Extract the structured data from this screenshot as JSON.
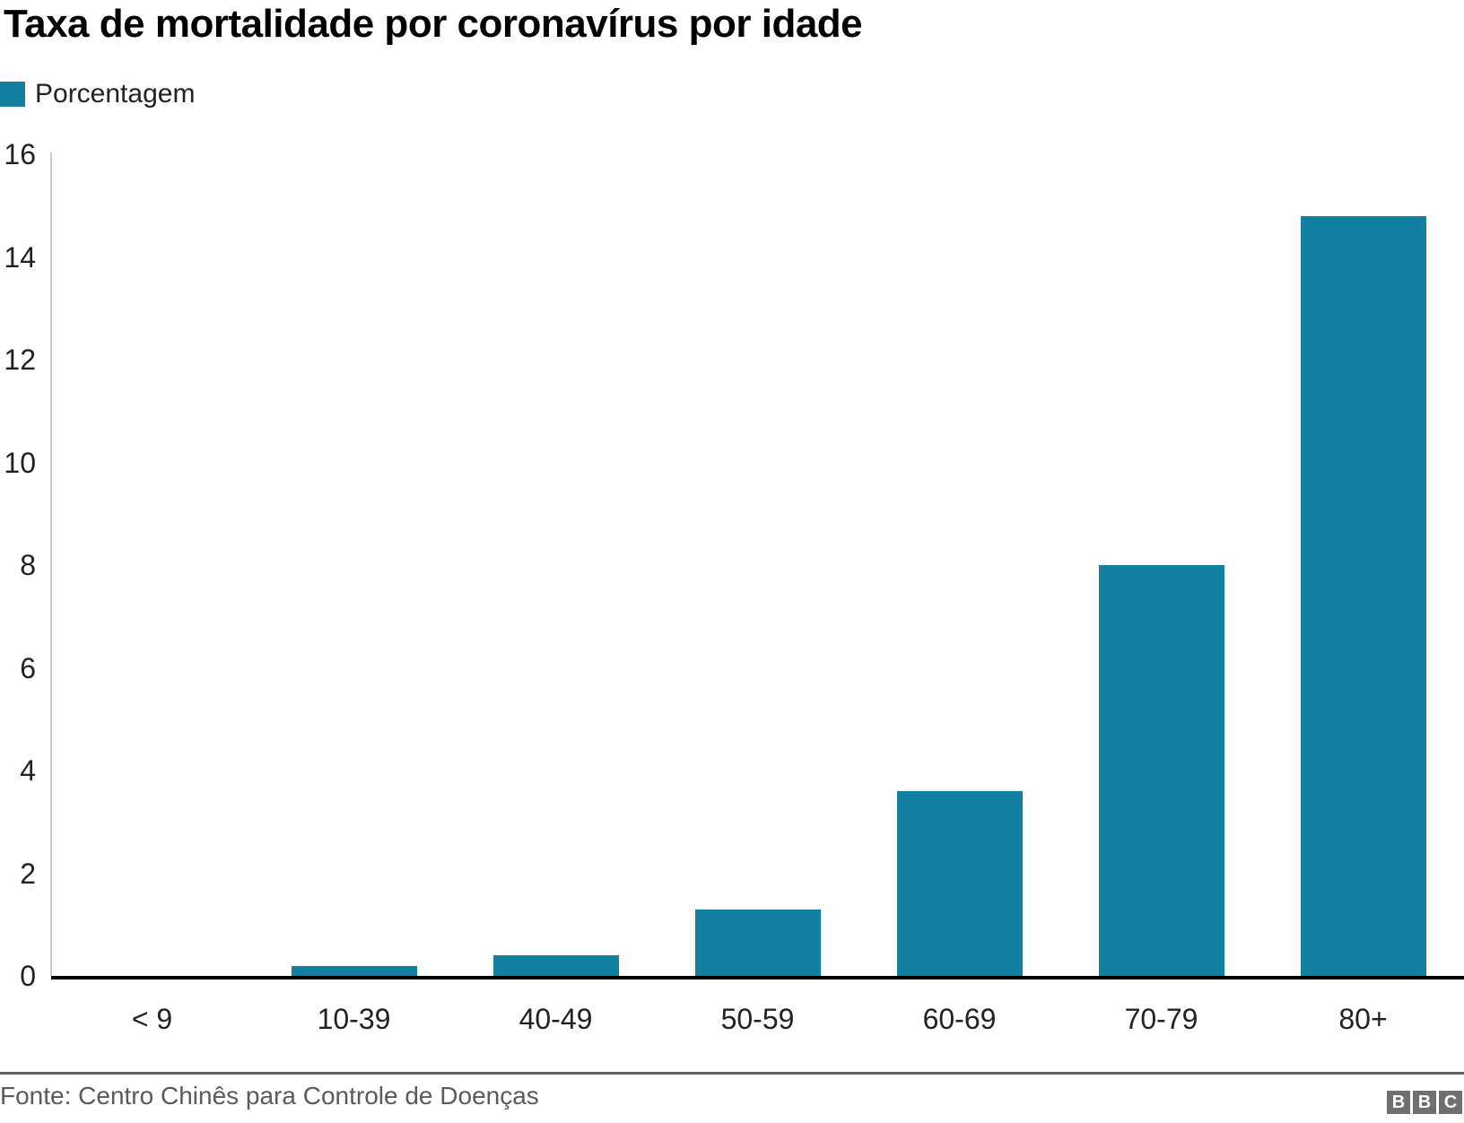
{
  "title": "Taxa de mortalidade por coronavírus por idade",
  "legend": {
    "label": "Porcentagem",
    "swatch_color": "#1380A1"
  },
  "chart_data": {
    "type": "bar",
    "title": "Taxa de mortalidade por coronavírus por idade",
    "categories": [
      "< 9",
      "10-39",
      "40-49",
      "50-59",
      "60-69",
      "70-79",
      "80+"
    ],
    "values": [
      0,
      0.2,
      0.4,
      1.3,
      3.6,
      8,
      14.8
    ],
    "series_name": "Porcentagem",
    "xlabel": "",
    "ylabel": "",
    "ylim": [
      0,
      16
    ],
    "yticks": [
      0,
      2,
      4,
      6,
      8,
      10,
      12,
      14,
      16
    ],
    "grid": false,
    "legend_position": "top-left",
    "bar_color": "#1380A1",
    "axis_line_color": "#cccccc",
    "baseline_color": "#000000"
  },
  "footer": {
    "source": "Fonte: Centro Chinês para Controle de Doenças",
    "logo_letters": [
      "B",
      "B",
      "C"
    ]
  }
}
